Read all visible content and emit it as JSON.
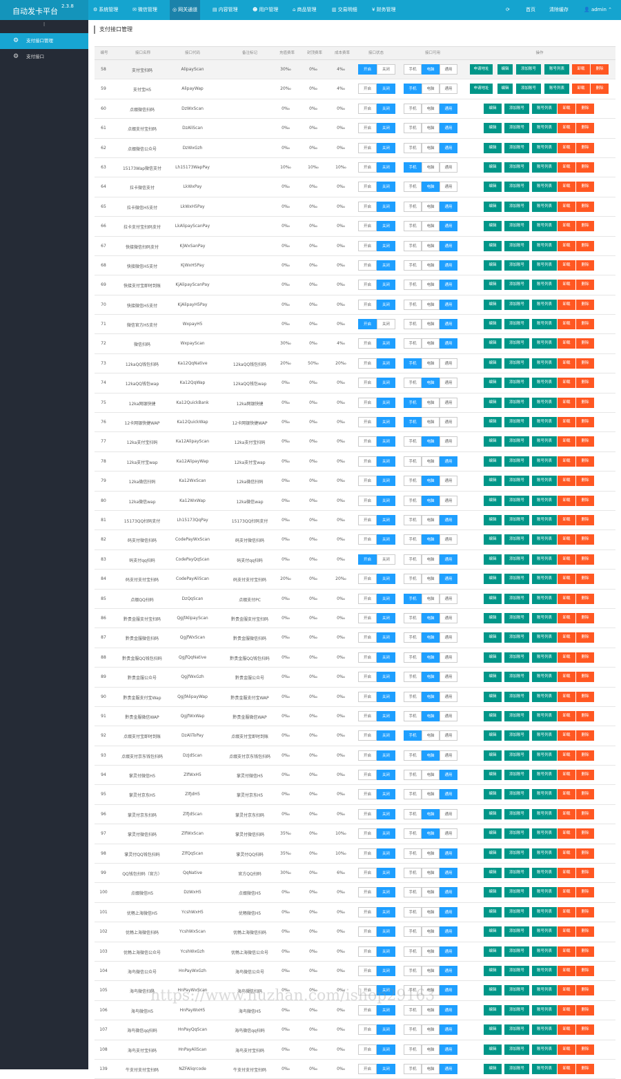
{
  "app": {
    "title": "自动发卡平台",
    "version": "2.3.8"
  },
  "topnav": {
    "items": [
      {
        "label": "系统管理",
        "icon": "gear-icon"
      },
      {
        "label": "微信管理",
        "icon": "wechat-icon"
      },
      {
        "label": "网关通道",
        "icon": "globe-icon",
        "active": true
      },
      {
        "label": "内容管理",
        "icon": "file-icon"
      },
      {
        "label": "用户管理",
        "icon": "users-icon"
      },
      {
        "label": "商品管理",
        "icon": "bank-icon"
      },
      {
        "label": "交易明细",
        "icon": "chart-icon"
      },
      {
        "label": "财务管理",
        "icon": "money-icon"
      }
    ],
    "refresh_icon": "refresh-icon",
    "home": "首页",
    "clear_cache": "清除缓存",
    "user": "admin"
  },
  "sidebar": {
    "toggle": "⁝",
    "items": [
      {
        "label": "支付接口管理",
        "icon": "gear-icon",
        "active": true
      },
      {
        "label": "支付接口",
        "icon": "gear-icon",
        "active": false
      }
    ]
  },
  "page": {
    "title": "支付接口管理"
  },
  "table": {
    "headers": [
      "编号",
      "接口名称",
      "接口代码",
      "备注标记",
      "充值费率",
      "封顶费率",
      "成本费率",
      "接口状态",
      "接口可用",
      "操作"
    ],
    "labels": {
      "on": "开启",
      "off": "关闭",
      "mobile": "手机",
      "pc": "电脑",
      "all": "通用",
      "apply": "申请地址",
      "edit": "编辑",
      "add_acc": "添加账号",
      "acc_list": "账号列表",
      "unload": "卸载",
      "delete": "删除"
    },
    "rows": [
      {
        "id": "58",
        "name": "支付宝扫码",
        "code": "AlipayScan",
        "remark": "",
        "r1": "30‰",
        "r2": "0‰",
        "r3": "4‰",
        "status": "on",
        "device": "pc",
        "apply": true
      },
      {
        "id": "59",
        "name": "支付宝H5",
        "code": "AlipayWap",
        "remark": "",
        "r1": "20‰",
        "r2": "0‰",
        "r3": "4‰",
        "status": "off",
        "device": "mobile",
        "apply": true
      },
      {
        "id": "60",
        "name": "点缀微信扫码",
        "code": "DzWxScan",
        "remark": "",
        "r1": "0‰",
        "r2": "0‰",
        "r3": "0‰",
        "status": "off",
        "device": "all"
      },
      {
        "id": "61",
        "name": "点缀支付宝扫码",
        "code": "DzAliScan",
        "remark": "",
        "r1": "0‰",
        "r2": "0‰",
        "r3": "0‰",
        "status": "off",
        "device": "all"
      },
      {
        "id": "62",
        "name": "点缀微信公众号",
        "code": "DzWxGzh",
        "remark": "",
        "r1": "0‰",
        "r2": "0‰",
        "r3": "0‰",
        "status": "off",
        "device": "all"
      },
      {
        "id": "63",
        "name": "15173Wap微信支付",
        "code": "Lh15173WapPay",
        "remark": "",
        "r1": "10‰",
        "r2": "10‰",
        "r3": "10‰",
        "status": "off",
        "device": "mobile"
      },
      {
        "id": "64",
        "name": "拉卡微信支付",
        "code": "LkWxPay",
        "remark": "",
        "r1": "0‰",
        "r2": "0‰",
        "r3": "0‰",
        "status": "off",
        "device": "pc"
      },
      {
        "id": "65",
        "name": "拉卡微信H5支付",
        "code": "LkWxH5Pay",
        "remark": "",
        "r1": "0‰",
        "r2": "0‰",
        "r3": "0‰",
        "status": "off",
        "device": "all"
      },
      {
        "id": "66",
        "name": "拉卡支付宝扫码支付",
        "code": "LkAlipayScanPay",
        "remark": "",
        "r1": "0‰",
        "r2": "0‰",
        "r3": "0‰",
        "status": "off",
        "device": "all"
      },
      {
        "id": "67",
        "name": "快接微信扫码支付",
        "code": "KjWxSanPay",
        "remark": "",
        "r1": "0‰",
        "r2": "0‰",
        "r3": "0‰",
        "status": "off",
        "device": "all"
      },
      {
        "id": "68",
        "name": "快接微信H5支付",
        "code": "KjWxH5Pay",
        "remark": "",
        "r1": "0‰",
        "r2": "0‰",
        "r3": "0‰",
        "status": "off",
        "device": "all"
      },
      {
        "id": "69",
        "name": "快接支付宝即时到账",
        "code": "KjAlipayScanPay",
        "remark": "",
        "r1": "0‰",
        "r2": "0‰",
        "r3": "0‰",
        "status": "off",
        "device": "all"
      },
      {
        "id": "70",
        "name": "快接微信H5支付",
        "code": "KjAlipayH5Pay",
        "remark": "",
        "r1": "0‰",
        "r2": "0‰",
        "r3": "0‰",
        "status": "off",
        "device": "all"
      },
      {
        "id": "71",
        "name": "微信官方H5支付",
        "code": "WxpayH5",
        "remark": "",
        "r1": "0‰",
        "r2": "0‰",
        "r3": "0‰",
        "status": "on",
        "device": "all"
      },
      {
        "id": "72",
        "name": "微信扫码",
        "code": "WxpayScan",
        "remark": "",
        "r1": "30‰",
        "r2": "0‰",
        "r3": "4‰",
        "status": "off",
        "device": "all"
      },
      {
        "id": "73",
        "name": "12kaQQ钱包扫码",
        "code": "Ka12QqNative",
        "remark": "12kaQQ钱包扫码",
        "r1": "20‰",
        "r2": "50‰",
        "r3": "20‰",
        "status": "off",
        "device": "mobile"
      },
      {
        "id": "74",
        "name": "12kaQQ钱包wap",
        "code": "Ka12QqWap",
        "remark": "12kaQQ钱包wap",
        "r1": "0‰",
        "r2": "0‰",
        "r3": "0‰",
        "status": "off",
        "device": "pc"
      },
      {
        "id": "75",
        "name": "12ka网银快捷",
        "code": "Ka12QuickBank",
        "remark": "12ka网银快捷",
        "r1": "0‰",
        "r2": "0‰",
        "r3": "0‰",
        "status": "off",
        "device": "mobile"
      },
      {
        "id": "76",
        "name": "12卡网银快捷WAP",
        "code": "Ka12QuickWap",
        "remark": "12卡网银快捷WAP",
        "r1": "0‰",
        "r2": "0‰",
        "r3": "0‰",
        "status": "off",
        "device": "mobile"
      },
      {
        "id": "77",
        "name": "12ka支付宝扫码",
        "code": "Ka12AlipayScan",
        "remark": "12ka支付宝扫码",
        "r1": "0‰",
        "r2": "0‰",
        "r3": "0‰",
        "status": "off",
        "device": "pc"
      },
      {
        "id": "78",
        "name": "12ka支付宝wap",
        "code": "Ka12AlipayWap",
        "remark": "12ka支付宝wap",
        "r1": "0‰",
        "r2": "0‰",
        "r3": "0‰",
        "status": "off",
        "device": "all"
      },
      {
        "id": "79",
        "name": "12ka微信扫码",
        "code": "Ka12WxScan",
        "remark": "12ka微信扫码",
        "r1": "0‰",
        "r2": "0‰",
        "r3": "0‰",
        "status": "off",
        "device": "pc"
      },
      {
        "id": "80",
        "name": "12ka微信wap",
        "code": "Ka12WxWap",
        "remark": "12ka微信wap",
        "r1": "0‰",
        "r2": "0‰",
        "r3": "0‰",
        "status": "off",
        "device": "pc"
      },
      {
        "id": "81",
        "name": "15173QQ扫码支付",
        "code": "Lh15173QqPay",
        "remark": "15173QQ扫码支付",
        "r1": "0‰",
        "r2": "0‰",
        "r3": "0‰",
        "status": "off",
        "device": "all"
      },
      {
        "id": "82",
        "name": "码支付微信扫码",
        "code": "CodePayWxScan",
        "remark": "码支付微信扫码",
        "r1": "0‰",
        "r2": "0‰",
        "r3": "0‰",
        "status": "off",
        "device": "pc"
      },
      {
        "id": "83",
        "name": "码支付qq扫码",
        "code": "CodePayQqScan",
        "remark": "码支付qq扫码",
        "r1": "0‰",
        "r2": "0‰",
        "r3": "0‰",
        "status": "on",
        "device": "all"
      },
      {
        "id": "84",
        "name": "码支付支付宝扫码",
        "code": "CodePayAliScan",
        "remark": "码支付支付宝扫码",
        "r1": "20‰",
        "r2": "0‰",
        "r3": "20‰",
        "status": "off",
        "device": "all"
      },
      {
        "id": "85",
        "name": "点缀QQ扫码",
        "code": "DzQqScan",
        "remark": "点缀支付PC",
        "r1": "0‰",
        "r2": "0‰",
        "r3": "0‰",
        "status": "off",
        "device": "mobile"
      },
      {
        "id": "86",
        "name": "黔贵金服支付宝扫码",
        "code": "QgjfAlipayScan",
        "remark": "黔贵金服支付宝扫码",
        "r1": "0‰",
        "r2": "0‰",
        "r3": "0‰",
        "status": "off",
        "device": "pc"
      },
      {
        "id": "87",
        "name": "黔贵金服微信扫码",
        "code": "QgjfWxScan",
        "remark": "黔贵金服微信扫码",
        "r1": "0‰",
        "r2": "0‰",
        "r3": "0‰",
        "status": "off",
        "device": "pc"
      },
      {
        "id": "88",
        "name": "黔贵金服QQ钱包扫码",
        "code": "QgjfQqNative",
        "remark": "黔贵金服QQ钱包扫码",
        "r1": "0‰",
        "r2": "0‰",
        "r3": "0‰",
        "status": "off",
        "device": "pc"
      },
      {
        "id": "89",
        "name": "黔贵金服公众号",
        "code": "QgjfWxGzh",
        "remark": "黔贵金服公众号",
        "r1": "0‰",
        "r2": "0‰",
        "r3": "0‰",
        "status": "off",
        "device": "pc"
      },
      {
        "id": "90",
        "name": "黔贵金服支付宝Wap",
        "code": "QgjfAlipayWap",
        "remark": "黔贵金服支付宝WAP",
        "r1": "0‰",
        "r2": "0‰",
        "r3": "0‰",
        "status": "off",
        "device": "pc"
      },
      {
        "id": "91",
        "name": "黔贵金服微信WAP",
        "code": "QgjfWxWap",
        "remark": "黔贵金服微信WAP",
        "r1": "0‰",
        "r2": "0‰",
        "r3": "0‰",
        "status": "off",
        "device": "pc"
      },
      {
        "id": "92",
        "name": "点缀支付宝即时到账",
        "code": "DzAliToPay",
        "remark": "点缀支付宝即时到账",
        "r1": "0‰",
        "r2": "0‰",
        "r3": "0‰",
        "status": "off",
        "device": "mobile"
      },
      {
        "id": "93",
        "name": "点缀支付京东钱包扫码",
        "code": "DzJdScan",
        "remark": "点缀支付京东钱包扫码",
        "r1": "0‰",
        "r2": "0‰",
        "r3": "0‰",
        "status": "off",
        "device": "pc"
      },
      {
        "id": "94",
        "name": "掌灵付微信H5",
        "code": "ZlfWxH5",
        "remark": "掌灵付微信H5",
        "r1": "0‰",
        "r2": "0‰",
        "r3": "0‰",
        "status": "off",
        "device": "all"
      },
      {
        "id": "95",
        "name": "掌灵付京东H5",
        "code": "ZlfJdH5",
        "remark": "掌灵付京东H5",
        "r1": "0‰",
        "r2": "0‰",
        "r3": "0‰",
        "status": "off",
        "device": "all"
      },
      {
        "id": "96",
        "name": "掌灵付京东扫码",
        "code": "ZlfJdScan",
        "remark": "掌灵付京东扫码",
        "r1": "0‰",
        "r2": "0‰",
        "r3": "0‰",
        "status": "off",
        "device": "pc"
      },
      {
        "id": "97",
        "name": "掌灵付微信扫码",
        "code": "ZlfWxScan",
        "remark": "掌灵付微信扫码",
        "r1": "35‰",
        "r2": "0‰",
        "r3": "10‰",
        "status": "off",
        "device": "pc"
      },
      {
        "id": "98",
        "name": "掌灵付QQ钱包扫码",
        "code": "ZlfQqScan",
        "remark": "掌灵付QQ扫码",
        "r1": "35‰",
        "r2": "0‰",
        "r3": "10‰",
        "status": "off",
        "device": "all"
      },
      {
        "id": "99",
        "name": "QQ钱包扫码（官方）",
        "code": "QqNative",
        "remark": "官方QQ扫码",
        "r1": "30‰",
        "r2": "0‰",
        "r3": "6‰",
        "status": "off",
        "device": "all"
      },
      {
        "id": "100",
        "name": "点缀微信H5",
        "code": "DzWxH5",
        "remark": "点缀微信H5",
        "r1": "0‰",
        "r2": "0‰",
        "r3": "0‰",
        "status": "off",
        "device": "all"
      },
      {
        "id": "101",
        "name": "优畅上海微信H5",
        "code": "YcshWxH5",
        "remark": "优畅微信H5",
        "r1": "0‰",
        "r2": "0‰",
        "r3": "0‰",
        "status": "off",
        "device": "all"
      },
      {
        "id": "102",
        "name": "优畅上海微信扫码",
        "code": "YcshWxScan",
        "remark": "优畅上海微信扫码",
        "r1": "0‰",
        "r2": "0‰",
        "r3": "0‰",
        "status": "off",
        "device": "all"
      },
      {
        "id": "103",
        "name": "优畅上海微信公众号",
        "code": "YcshWxGzh",
        "remark": "优畅上海微信公众号",
        "r1": "0‰",
        "r2": "0‰",
        "r3": "0‰",
        "status": "off",
        "device": "all"
      },
      {
        "id": "104",
        "name": "海鸟微信公众号",
        "code": "HnPayWxGzh",
        "remark": "海鸟微信公众号",
        "r1": "0‰",
        "r2": "0‰",
        "r3": "0‰",
        "status": "off",
        "device": "all"
      },
      {
        "id": "105",
        "name": "海鸟微信扫码",
        "code": "HnPayWxScan",
        "remark": "海鸟微信扫码",
        "r1": "0‰",
        "r2": "0‰",
        "r3": "0‰",
        "status": "off",
        "device": "all"
      },
      {
        "id": "106",
        "name": "海鸟微信H5",
        "code": "HnPayWxH5",
        "remark": "海鸟微信H5",
        "r1": "0‰",
        "r2": "0‰",
        "r3": "0‰",
        "status": "off",
        "device": "all"
      },
      {
        "id": "107",
        "name": "海鸟微信qq扫码",
        "code": "HnPayQqScan",
        "remark": "海鸟微信qq扫码",
        "r1": "0‰",
        "r2": "0‰",
        "r3": "0‰",
        "status": "off",
        "device": "all"
      },
      {
        "id": "108",
        "name": "海鸟支付宝扫码",
        "code": "HnPayAliScan",
        "remark": "海鸟支付宝扫码",
        "r1": "0‰",
        "r2": "0‰",
        "r3": "0‰",
        "status": "off",
        "device": "all"
      },
      {
        "id": "139",
        "name": "牛支付支付宝扫码",
        "code": "NZFAliqrcode",
        "remark": "牛支付支付宝扫码",
        "r1": "0‰",
        "r2": "0‰",
        "r3": "0‰",
        "status": "off",
        "device": "all"
      }
    ]
  },
  "watermark": "https://www.huzhan.com/ishop29163"
}
